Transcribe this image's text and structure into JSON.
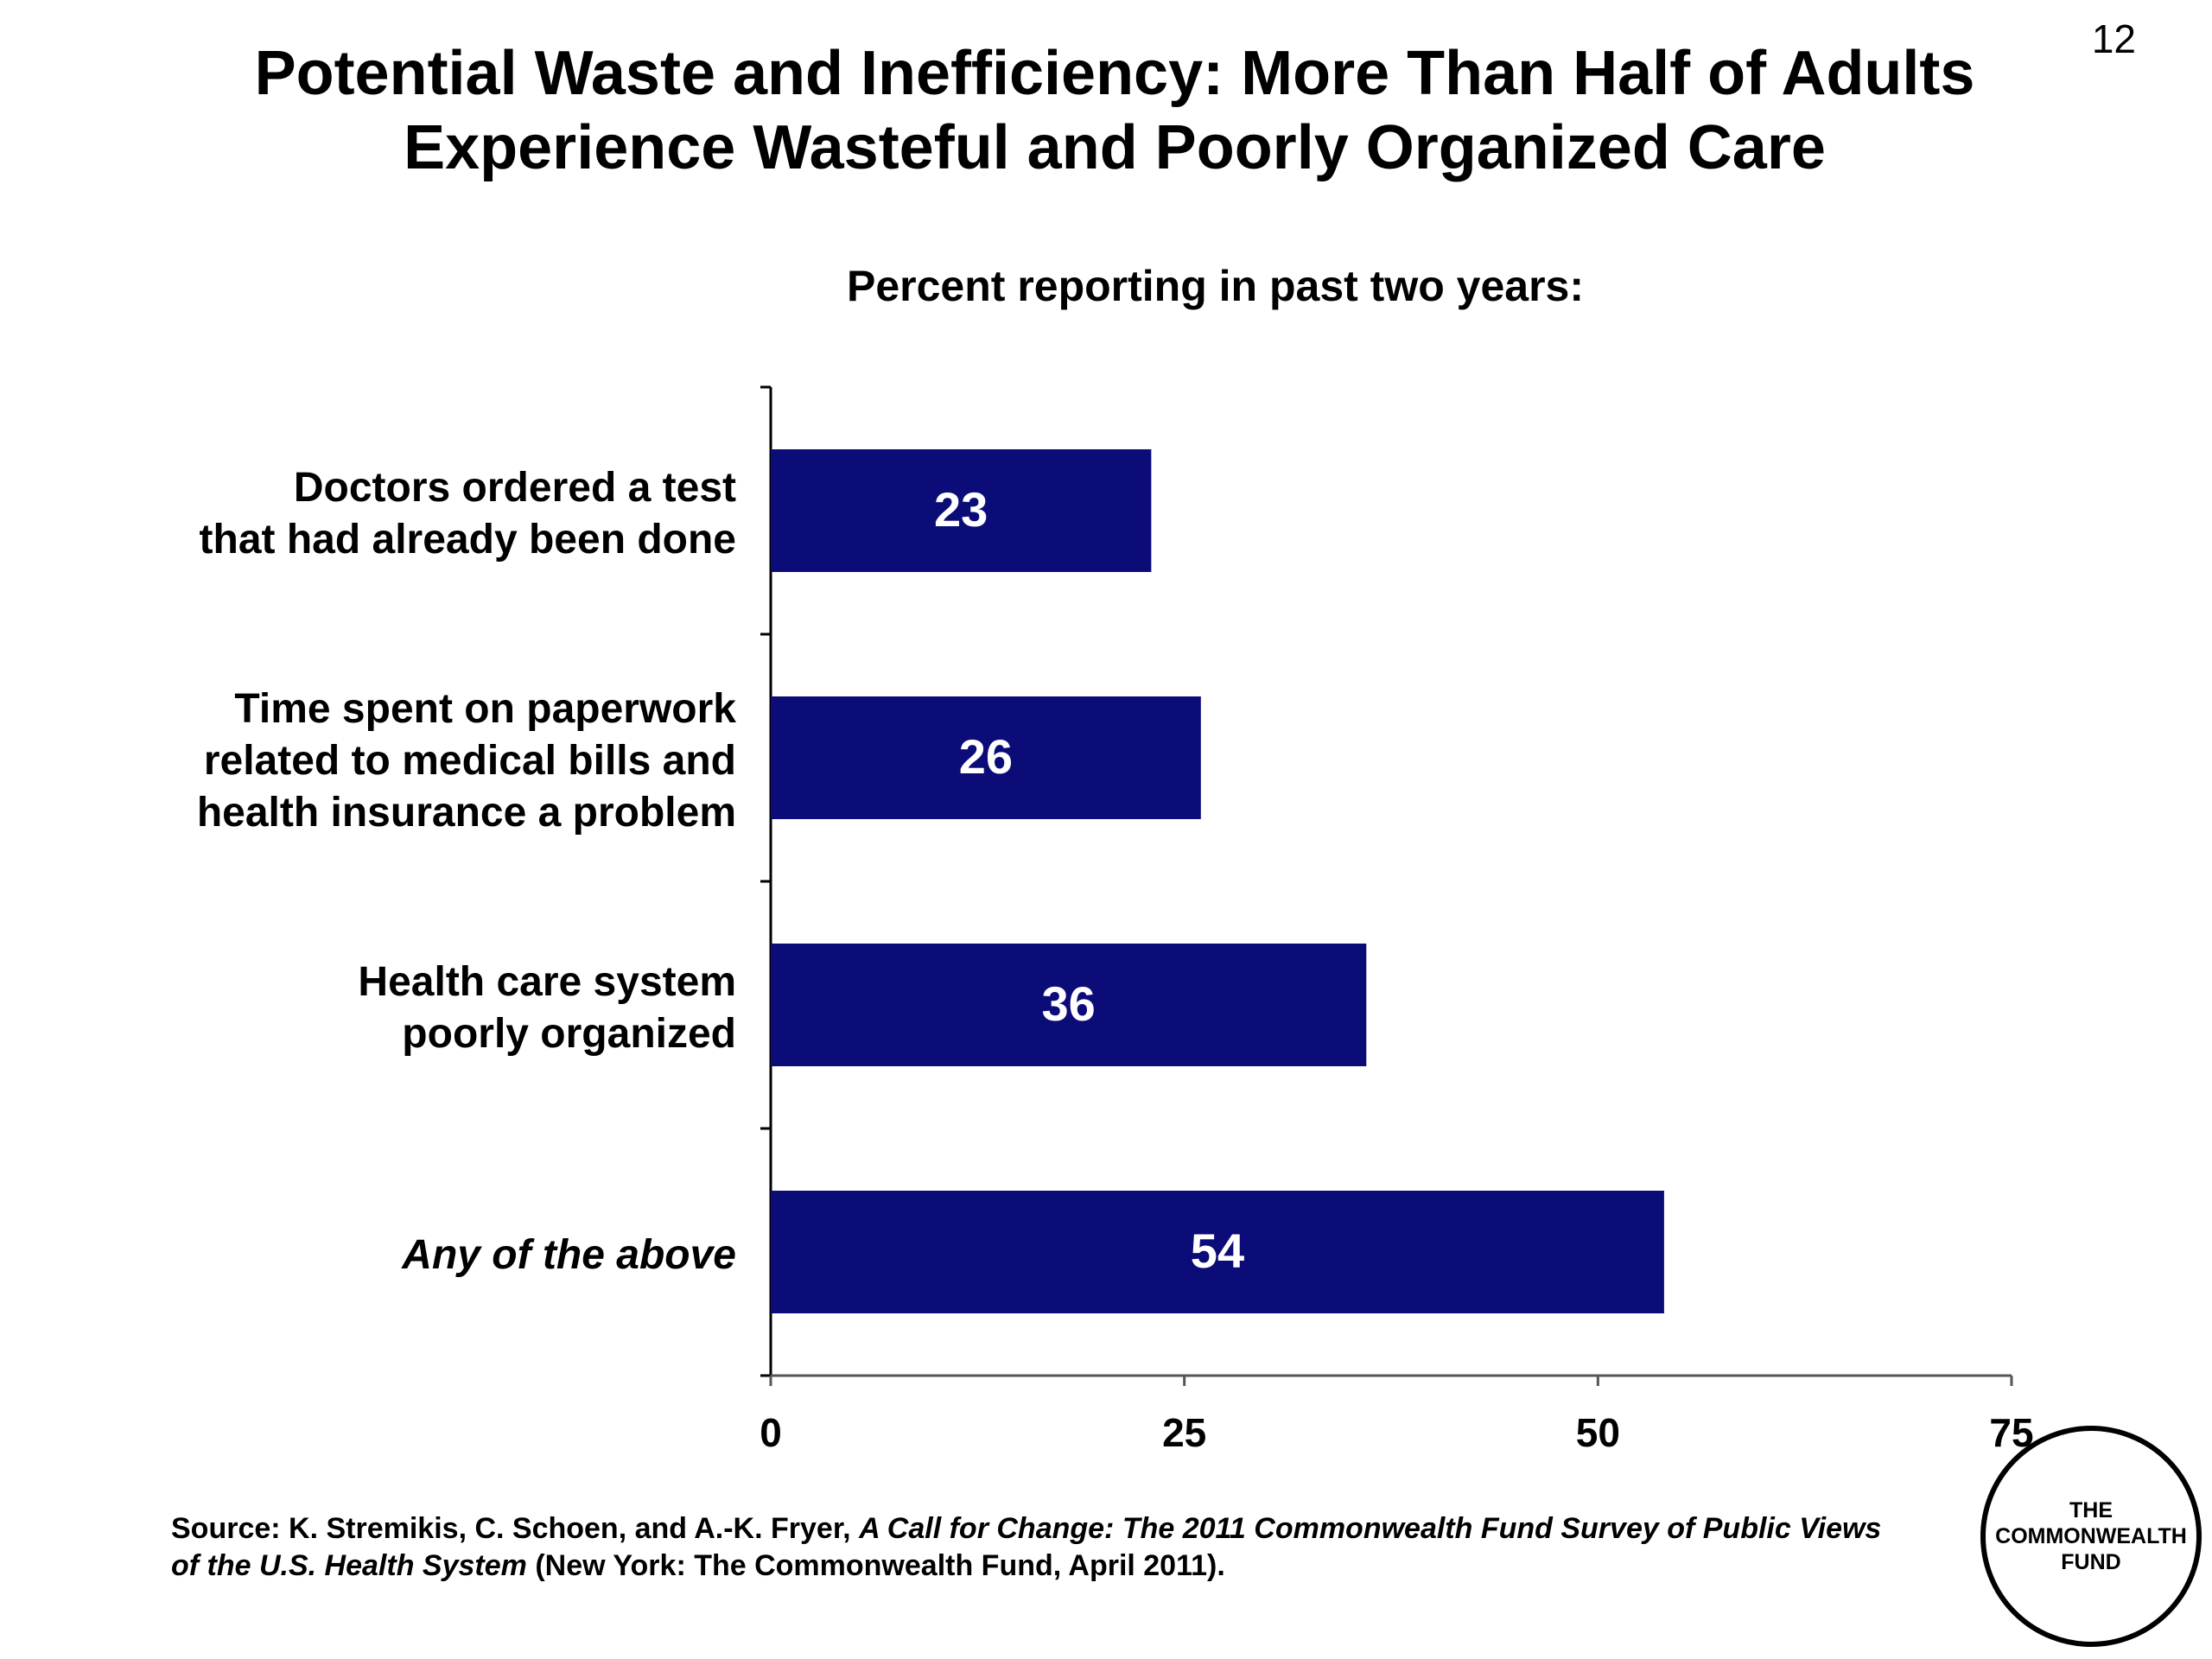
{
  "page_number": "12",
  "title_line1": "Potential Waste and Inefficiency: More Than Half of Adults",
  "title_line2": "Experience Wasteful and Poorly Organized Care",
  "chart_data": {
    "type": "bar",
    "orientation": "horizontal",
    "subtitle": "Percent reporting in past two years:",
    "categories": [
      [
        "Doctors ordered a test",
        "that had already been done"
      ],
      [
        "Time spent on paperwork",
        "related to medical bills and",
        "health insurance a problem"
      ],
      [
        "Health care system",
        "poorly organized"
      ],
      [
        "Any of the above"
      ]
    ],
    "values": [
      23,
      26,
      36,
      54
    ],
    "data_labels": [
      "23",
      "26",
      "36",
      "54"
    ],
    "xlim": [
      0,
      75
    ],
    "xticks": [
      0,
      25,
      50,
      75
    ],
    "xtick_labels": [
      "0",
      "25",
      "50",
      "75"
    ],
    "bar_color": "#0c0c78",
    "label_color": "#ffffff",
    "grid": false,
    "legend": "none"
  },
  "source": {
    "prefix": "Source: K. Stremikis, C. Schoen, and A.-K. Fryer, ",
    "italic_title": "A Call for Change: The 2011 Commonwealth Fund Survey of Public Views of the U.S. Health System",
    "suffix": " (New York: The Commonwealth Fund, April 2011)."
  },
  "logo": {
    "line1": "THE",
    "line2": "COMMONWEALTH",
    "line3": "FUND"
  }
}
